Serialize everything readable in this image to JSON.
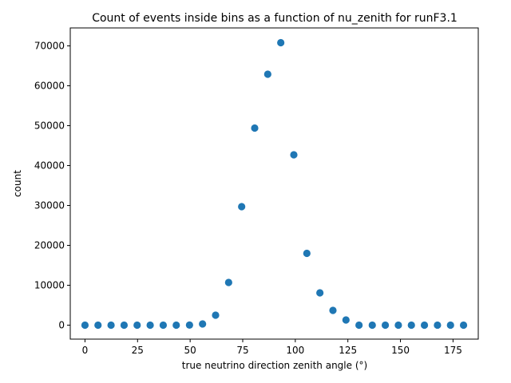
{
  "chart_data": {
    "type": "scatter",
    "title": "Count of events inside bins as a function of nu_zenith for runF3.1",
    "xlabel": "true neutrino direction zenith angle (°)",
    "ylabel": "count",
    "xlim": [
      -7,
      187
    ],
    "ylim": [
      -3500,
      74500
    ],
    "xticks": [
      0,
      25,
      50,
      75,
      100,
      125,
      150,
      175
    ],
    "yticks": [
      0,
      10000,
      20000,
      30000,
      40000,
      50000,
      60000,
      70000
    ],
    "marker_color": "#1f77b4",
    "grid": false,
    "legend": "none",
    "x": [
      0,
      6.2,
      12.4,
      18.6,
      24.8,
      31.0,
      37.2,
      43.4,
      49.7,
      55.9,
      62.1,
      68.3,
      74.5,
      80.7,
      86.9,
      93.1,
      99.3,
      105.5,
      111.7,
      117.9,
      124.1,
      130.3,
      136.6,
      142.8,
      149.0,
      155.2,
      161.4,
      167.6,
      173.8,
      180
    ],
    "y": [
      0,
      0,
      0,
      0,
      0,
      0,
      0,
      0,
      30,
      300,
      2500,
      10700,
      29700,
      49400,
      62900,
      70800,
      42700,
      18000,
      8100,
      3700,
      1300,
      0,
      0,
      0,
      0,
      0,
      0,
      0,
      0,
      0
    ]
  }
}
